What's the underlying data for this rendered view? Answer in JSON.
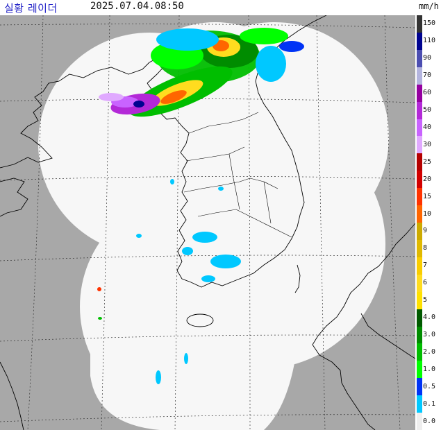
{
  "header": {
    "title": "실황 레이더",
    "timestamp": "2025.07.04.08:50",
    "unit": "mm/h"
  },
  "colors": {
    "sea_background": "#a8a8a8",
    "radar_coverage": "#f7f7f7",
    "coastline": "#000000",
    "gridline": "#333333"
  },
  "legend": [
    {
      "label": "150",
      "color": "#333333"
    },
    {
      "label": "110",
      "color": "#000390"
    },
    {
      "label": "90",
      "color": "#4c4eb1"
    },
    {
      "label": "70",
      "color": "#b3b4de"
    },
    {
      "label": "60",
      "color": "#9500a0"
    },
    {
      "label": "50",
      "color": "#b329d7"
    },
    {
      "label": "40",
      "color": "#c963ff"
    },
    {
      "label": "30",
      "color": "#e0a9ff"
    },
    {
      "label": "25",
      "color": "#b40000"
    },
    {
      "label": "20",
      "color": "#d20000"
    },
    {
      "label": "15",
      "color": "#ff3300"
    },
    {
      "label": "10",
      "color": "#ff6600"
    },
    {
      "label": "9",
      "color": "#ccaa00"
    },
    {
      "label": "8",
      "color": "#e0b900"
    },
    {
      "label": "7",
      "color": "#f9cd00"
    },
    {
      "label": "6",
      "color": "#ffdc1f"
    },
    {
      "label": "5",
      "color": "#ffe100"
    },
    {
      "label": "4.0",
      "color": "#005a00"
    },
    {
      "label": "3.0",
      "color": "#008c00"
    },
    {
      "label": "2.0",
      "color": "#00be00"
    },
    {
      "label": "1.0",
      "color": "#00ff00"
    },
    {
      "label": "0.5",
      "color": "#0033f5"
    },
    {
      "label": "0.1",
      "color": "#00c8ff"
    },
    {
      "label": "0.0",
      "color": "#eeeeee"
    }
  ]
}
